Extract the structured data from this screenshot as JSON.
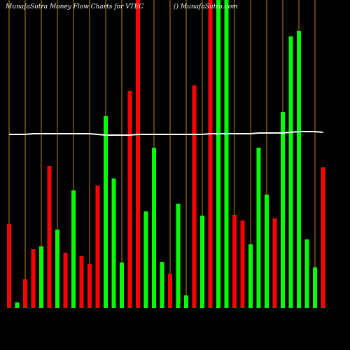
{
  "chart_data": {
    "type": "bar",
    "title": "MunafaSutra  Money Flow  Charts for VTEC",
    "subtitle": "() MunafaSutra.com",
    "ylim": [
      0,
      440
    ],
    "values": [
      120,
      8,
      41,
      84,
      88,
      203,
      112,
      79,
      168,
      74,
      63,
      175,
      274,
      185,
      65,
      310,
      440,
      138,
      229,
      66,
      49,
      149,
      18,
      318,
      132,
      440,
      440,
      440,
      133,
      125,
      91,
      229,
      162,
      128,
      280,
      388,
      396,
      98,
      58,
      201
    ],
    "colors": [
      "#ff0000",
      "#00ff00",
      "#ff0000",
      "#ff0000",
      "#00ff00",
      "#ff0000",
      "#00ff00",
      "#ff0000",
      "#00ff00",
      "#ff0000",
      "#ff0000",
      "#ff0000",
      "#00ff00",
      "#00ff00",
      "#00ff00",
      "#ff0000",
      "#ff0000",
      "#00ff00",
      "#00ff00",
      "#00ff00",
      "#ff0000",
      "#00ff00",
      "#00ff00",
      "#ff0000",
      "#00ff00",
      "#ff0000",
      "#00ff00",
      "#00ff00",
      "#ff0000",
      "#ff0000",
      "#00ff00",
      "#00ff00",
      "#00ff00",
      "#ff0000",
      "#00ff00",
      "#00ff00",
      "#00ff00",
      "#00ff00",
      "#00ff00",
      "#ff0000"
    ],
    "line": {
      "color": "#ffffff",
      "values": [
        248,
        248,
        248,
        249,
        249,
        249,
        249,
        249,
        249,
        249,
        249,
        248,
        247,
        247,
        247,
        247,
        248,
        248,
        248,
        248,
        248,
        248,
        248,
        248,
        248,
        249,
        249,
        249,
        249,
        249,
        249,
        250,
        250,
        250,
        250,
        251,
        252,
        252,
        252,
        251
      ]
    },
    "grid_color": "#b8860b"
  }
}
